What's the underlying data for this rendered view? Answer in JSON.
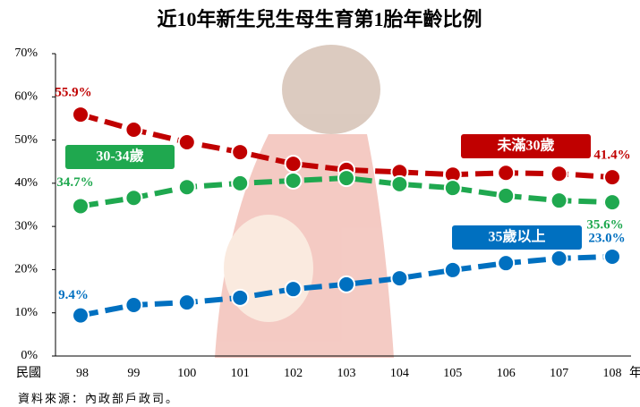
{
  "chart_data": {
    "type": "line",
    "title": "近10年新生兒生母生育第1胎年齡比例",
    "x_prefix": "民國",
    "x_suffix": "年",
    "categories": [
      "98",
      "99",
      "100",
      "101",
      "102",
      "103",
      "104",
      "105",
      "106",
      "107",
      "108"
    ],
    "series": [
      {
        "name": "未滿30歲",
        "color": "#c00000",
        "values": [
          55.9,
          52.4,
          49.5,
          47.2,
          44.5,
          43.1,
          42.6,
          42.0,
          42.4,
          42.2,
          41.4
        ],
        "value_labels": [
          "55.9%",
          null,
          null,
          null,
          null,
          null,
          null,
          null,
          null,
          null,
          "41.4%"
        ]
      },
      {
        "name": "30-34歲",
        "color": "#1fa84f",
        "values": [
          34.7,
          36.6,
          39.1,
          40.0,
          40.6,
          41.2,
          39.8,
          38.9,
          37.1,
          36.0,
          35.6
        ],
        "value_labels": [
          "34.7%",
          null,
          null,
          null,
          null,
          null,
          null,
          null,
          null,
          null,
          "35.6%"
        ]
      },
      {
        "name": "35歲以上",
        "color": "#0070c0",
        "values": [
          9.4,
          11.8,
          12.4,
          13.5,
          15.5,
          16.6,
          18.0,
          19.9,
          21.5,
          22.6,
          23.0
        ],
        "value_labels": [
          "9.4%",
          null,
          null,
          null,
          null,
          null,
          null,
          null,
          null,
          null,
          "23.0%"
        ]
      }
    ],
    "ylim": [
      0,
      70
    ],
    "yticks": [
      {
        "value": 0,
        "label": "0%"
      },
      {
        "value": 10,
        "label": "10%"
      },
      {
        "value": 20,
        "label": "20%"
      },
      {
        "value": 30,
        "label": "30%"
      },
      {
        "value": 40,
        "label": "40%"
      },
      {
        "value": 50,
        "label": "50%"
      },
      {
        "value": 60,
        "label": "60%"
      },
      {
        "value": 70,
        "label": "70%"
      }
    ],
    "grid": false,
    "source": "資料來源：內政部戶政司。"
  }
}
